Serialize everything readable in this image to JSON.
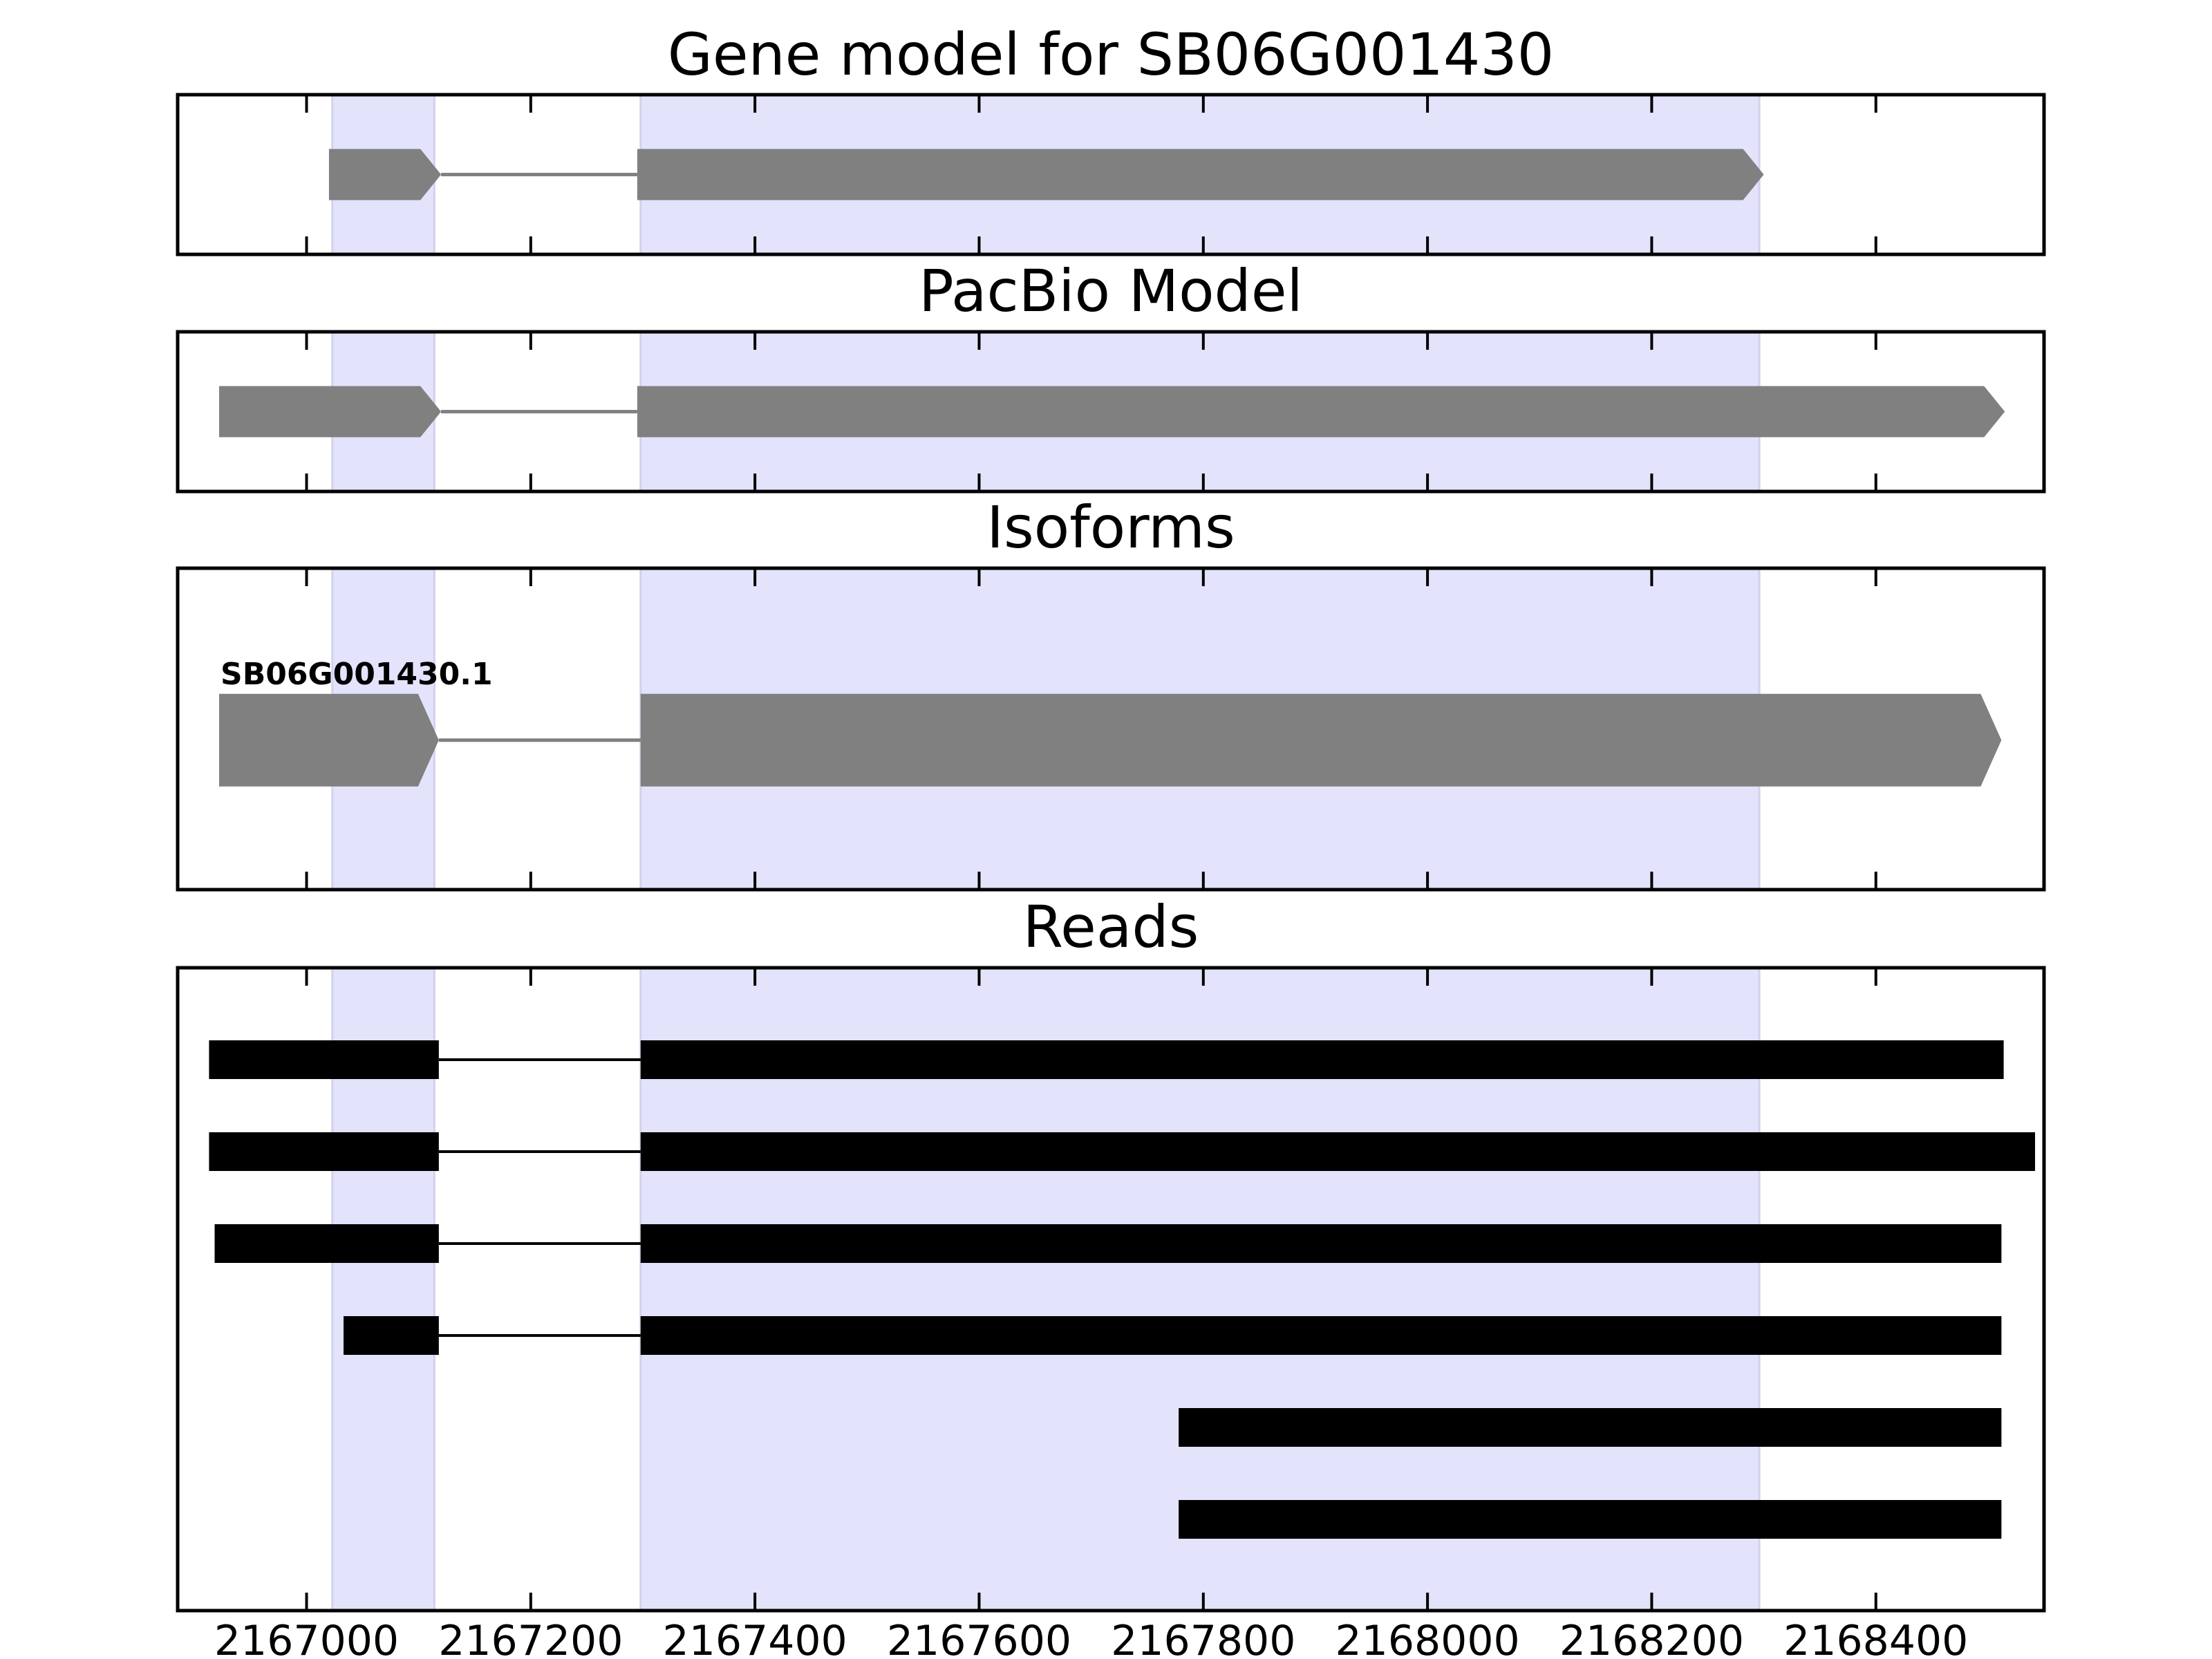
{
  "colors": {
    "highlight": "#e3e3fc",
    "model_feature": "#808080",
    "read_feature": "#000000",
    "frame": "#000000"
  },
  "chart_data": {
    "type": "gene-model-tracks",
    "xlim": [
      2166885,
      2168550
    ],
    "x_ticks": [
      2167000,
      2167200,
      2167400,
      2167600,
      2167800,
      2168000,
      2168200,
      2168400
    ],
    "highlight_regions": [
      [
        2167023,
        2167114
      ],
      [
        2167298,
        2168296
      ]
    ],
    "panels": [
      {
        "title": "Gene model for SB06G001430",
        "kind": "model",
        "rows": [
          {
            "exons": [
              [
                2167020,
                2167120
              ],
              [
                2167295,
                2168300
              ]
            ]
          }
        ]
      },
      {
        "title": "PacBio Model",
        "kind": "model",
        "rows": [
          {
            "exons": [
              [
                2166922,
                2167120
              ],
              [
                2167295,
                2168515
              ]
            ]
          }
        ]
      },
      {
        "title": "Isoforms",
        "kind": "model",
        "rows": [
          {
            "label": "SB06G001430.1",
            "exons": [
              [
                2166922,
                2167118
              ],
              [
                2167298,
                2168512
              ]
            ]
          }
        ]
      },
      {
        "title": "Reads",
        "kind": "reads",
        "rows": [
          {
            "exons": [
              [
                2166913,
                2167118
              ],
              [
                2167298,
                2168514
              ]
            ]
          },
          {
            "exons": [
              [
                2166913,
                2167118
              ],
              [
                2167298,
                2168542
              ]
            ]
          },
          {
            "exons": [
              [
                2166918,
                2167118
              ],
              [
                2167298,
                2168512
              ]
            ]
          },
          {
            "exons": [
              [
                2167033,
                2167118
              ],
              [
                2167298,
                2168512
              ]
            ]
          },
          {
            "exons": [
              [
                2167778,
                2168512
              ]
            ]
          },
          {
            "exons": [
              [
                2167778,
                2168512
              ]
            ]
          }
        ]
      }
    ]
  }
}
